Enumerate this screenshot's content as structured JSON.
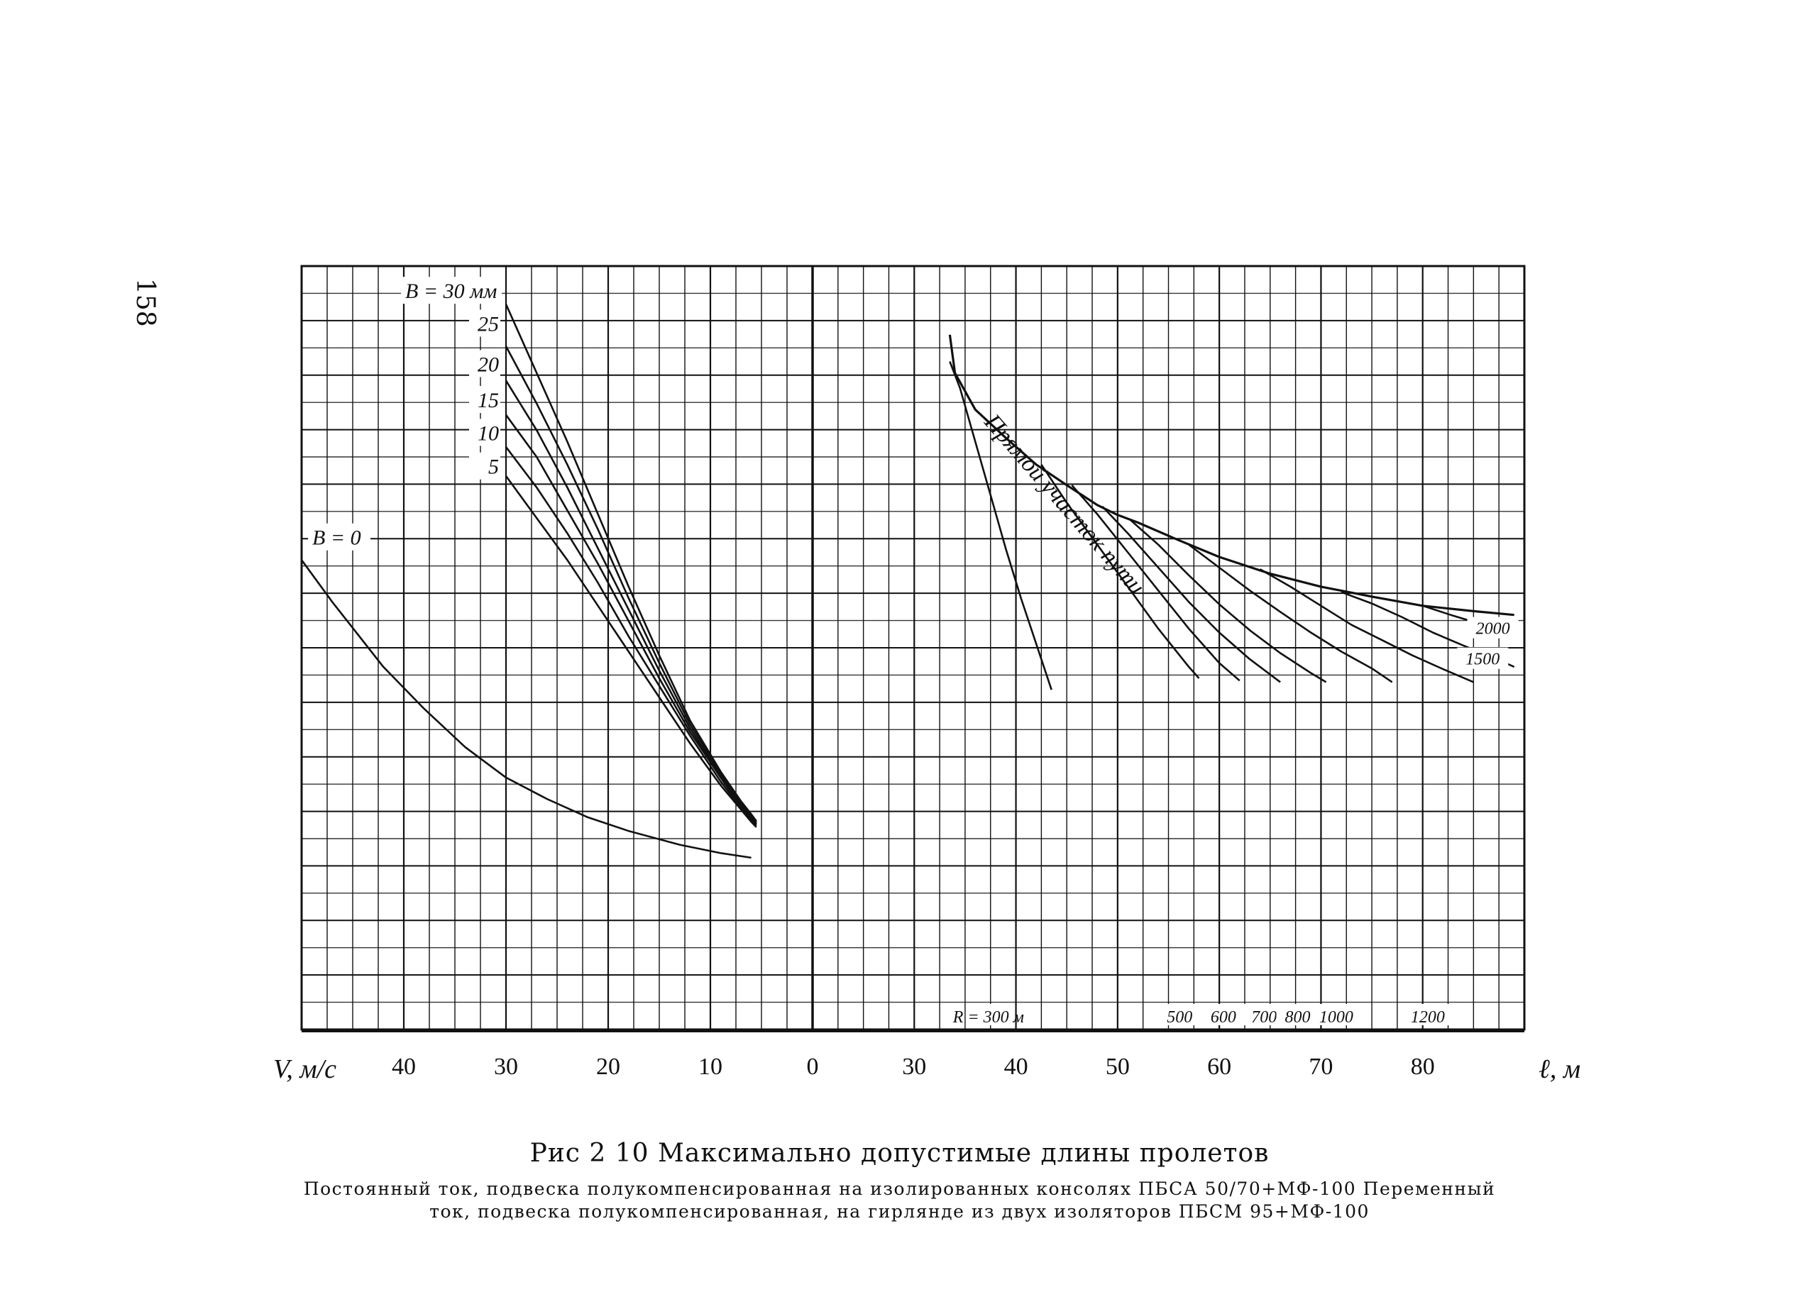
{
  "page_number": "158",
  "caption": {
    "title": "Рис 2 10 Максимально допустимые длины пролетов",
    "line1": "Постоянный ток, подвеска полукомпенсированная на изолированных консолях ПБСА 50/70+МФ-100 Переменный",
    "line2": "ток, подвеска полукомпенсированная, на гирлянде из двух изоляторов ПБСМ 95+МФ-100"
  },
  "colors": {
    "ink": "#111111",
    "paper": "#ffffff"
  },
  "chart_data": [
    {
      "type": "line",
      "panel": "left",
      "xlabel": "V, м/с",
      "x_direction": "reversed",
      "xlim": [
        50,
        0
      ],
      "x_ticks": [
        40,
        30,
        20,
        10,
        0
      ],
      "x_tick_labels": [
        "40",
        "30",
        "20",
        "10",
        "0"
      ],
      "y_ticks": [
        5,
        10,
        15,
        20,
        25
      ],
      "y_tick_labels": [
        "5",
        "10",
        "15",
        "20",
        "25"
      ],
      "grid": true,
      "series": [
        {
          "name": "В = 0",
          "label": "В = 0",
          "points": [
            [
              50,
              61.5
            ],
            [
              47,
              56
            ],
            [
              42,
              47.5
            ],
            [
              38,
              42
            ],
            [
              34,
              37
            ],
            [
              30,
              33
            ],
            [
              26,
              30.2
            ],
            [
              22,
              27.8
            ],
            [
              18,
              26
            ],
            [
              13,
              24.2
            ],
            [
              9,
              23.1
            ],
            [
              6,
              22.5
            ]
          ]
        },
        {
          "name": "5",
          "label": "5",
          "points": [
            [
              30,
              72.5
            ],
            [
              27,
              67
            ],
            [
              24,
              61.5
            ],
            [
              21,
              55.5
            ],
            [
              18,
              49.5
            ],
            [
              15,
              43.5
            ],
            [
              12,
              37.5
            ],
            [
              9,
              32
            ],
            [
              7,
              28.8
            ],
            [
              6,
              27.2
            ],
            [
              5.5,
              26.5
            ]
          ]
        },
        {
          "name": "10",
          "label": "10",
          "points": [
            [
              30,
              76.3
            ],
            [
              27,
              71
            ],
            [
              24,
              65
            ],
            [
              21,
              58.5
            ],
            [
              18,
              51.5
            ],
            [
              15,
              45
            ],
            [
              12,
              38.5
            ],
            [
              9,
              32.5
            ],
            [
              7,
              29
            ],
            [
              6,
              27.5
            ],
            [
              5.5,
              26.7
            ]
          ]
        },
        {
          "name": "15",
          "label": "15",
          "points": [
            [
              30,
              80.5
            ],
            [
              27,
              75
            ],
            [
              24,
              68
            ],
            [
              21,
              61
            ],
            [
              18,
              53.5
            ],
            [
              15,
              46
            ],
            [
              12,
              39
            ],
            [
              9,
              33
            ],
            [
              7,
              29.2
            ],
            [
              6,
              27.7
            ],
            [
              5.5,
              26.9
            ]
          ]
        },
        {
          "name": "20",
          "label": "20",
          "points": [
            [
              30,
              85
            ],
            [
              27,
              78.5
            ],
            [
              24,
              71
            ],
            [
              21,
              63
            ],
            [
              18,
              55
            ],
            [
              15,
              47
            ],
            [
              12,
              39.5
            ],
            [
              9,
              33.2
            ],
            [
              7,
              29.5
            ],
            [
              6,
              27.9
            ],
            [
              5.5,
              27
            ]
          ]
        },
        {
          "name": "25",
          "label": "25",
          "points": [
            [
              30,
              89.5
            ],
            [
              27,
              82
            ],
            [
              24,
              74
            ],
            [
              21,
              65.5
            ],
            [
              18,
              56.5
            ],
            [
              15,
              48
            ],
            [
              12,
              40
            ],
            [
              9,
              33.5
            ],
            [
              7,
              29.7
            ],
            [
              6,
              28
            ],
            [
              5.5,
              27.2
            ]
          ]
        },
        {
          "name": "В = 30 мм",
          "label": "В = 30 мм",
          "points": [
            [
              30,
              95
            ],
            [
              27,
              86
            ],
            [
              24,
              77
            ],
            [
              21,
              67.5
            ],
            [
              18,
              58
            ],
            [
              15,
              49
            ],
            [
              12,
              40.5
            ],
            [
              9,
              33.8
            ],
            [
              7,
              29.9
            ],
            [
              6,
              28.2
            ],
            [
              5.5,
              27.3
            ]
          ]
        }
      ]
    },
    {
      "type": "line",
      "panel": "right",
      "xlabel": "ℓ, м",
      "xlim": [
        20,
        90
      ],
      "x_ticks": [
        30,
        40,
        50,
        60,
        70,
        80
      ],
      "x_tick_labels": [
        "30",
        "40",
        "50",
        "60",
        "70",
        "80"
      ],
      "grid": true,
      "annotations": [
        "Прямой участок пути"
      ],
      "series": [
        {
          "name": "Прямой участок пути",
          "label": "Прямой участок пути",
          "points": [
            [
              33.5,
              91
            ],
            [
              34,
              86
            ],
            [
              36,
              81.2
            ],
            [
              39,
              77.5
            ],
            [
              42,
              74
            ],
            [
              45,
              71.3
            ],
            [
              48,
              68.7
            ],
            [
              50,
              67.4
            ],
            [
              52,
              66.4
            ],
            [
              56,
              64.1
            ],
            [
              60,
              61.9
            ],
            [
              65,
              59.7
            ],
            [
              70,
              58
            ],
            [
              75,
              56.7
            ],
            [
              80,
              55.5
            ],
            [
              85,
              54.8
            ],
            [
              89,
              54.3
            ]
          ]
        },
        {
          "name": "R = 300 м",
          "label": "R = 300 м",
          "points": [
            [
              33.5,
              87.5
            ],
            [
              34.5,
              84
            ],
            [
              36,
              77
            ],
            [
              37.5,
              70
            ],
            [
              39,
              63
            ],
            [
              40.5,
              56.5
            ],
            [
              42,
              50.5
            ],
            [
              43.5,
              44.5
            ]
          ]
        },
        {
          "name": "500",
          "label": "500",
          "points": [
            [
              42.5,
              74
            ],
            [
              45,
              69
            ],
            [
              48,
              63.5
            ],
            [
              51,
              58
            ],
            [
              54,
              52.5
            ],
            [
              57,
              47.5
            ],
            [
              58,
              46
            ]
          ]
        },
        {
          "name": "600",
          "label": "600",
          "points": [
            [
              45.5,
              71.3
            ],
            [
              48,
              67.5
            ],
            [
              51,
              62.5
            ],
            [
              54,
              57.5
            ],
            [
              57,
              52.5
            ],
            [
              60,
              48
            ],
            [
              62,
              45.7
            ]
          ]
        },
        {
          "name": "700",
          "label": "700",
          "points": [
            [
              48.5,
              68.5
            ],
            [
              51,
              65
            ],
            [
              54,
              60.5
            ],
            [
              57,
              56
            ],
            [
              60,
              52
            ],
            [
              63,
              48.5
            ],
            [
              66,
              45.5
            ]
          ]
        },
        {
          "name": "800",
          "label": "800",
          "points": [
            [
              51.2,
              66.8
            ],
            [
              54,
              63.5
            ],
            [
              57,
              59.5
            ],
            [
              60,
              55.7
            ],
            [
              63,
              52.3
            ],
            [
              66,
              49.3
            ],
            [
              69,
              46.7
            ],
            [
              70.5,
              45.5
            ]
          ]
        },
        {
          "name": "1000",
          "label": "1000",
          "points": [
            [
              57,
              63.5
            ],
            [
              60,
              60.5
            ],
            [
              63,
              57.5
            ],
            [
              66,
              54.7
            ],
            [
              69,
              52
            ],
            [
              72,
              49.5
            ],
            [
              75,
              47.3
            ],
            [
              77,
              45.5
            ]
          ]
        },
        {
          "name": "1200",
          "label": "1200",
          "points": [
            [
              64,
              60.3
            ],
            [
              67,
              58
            ],
            [
              70,
              55.5
            ],
            [
              73,
              53
            ],
            [
              76,
              51
            ],
            [
              79,
              49
            ],
            [
              82,
              47.2
            ],
            [
              85,
              45.5
            ]
          ]
        },
        {
          "name": "1500",
          "label": "1500",
          "points": [
            [
              72,
              57.3
            ],
            [
              75,
              55.8
            ],
            [
              78,
              54
            ],
            [
              81,
              52
            ],
            [
              84,
              50.3
            ],
            [
              87,
              48.7
            ],
            [
              89,
              47.5
            ]
          ]
        },
        {
          "name": "2000",
          "label": "2000",
          "points": [
            [
              80,
              55.5
            ],
            [
              83,
              54.2
            ],
            [
              86,
              53
            ],
            [
              89,
              51.5
            ]
          ]
        }
      ]
    }
  ]
}
